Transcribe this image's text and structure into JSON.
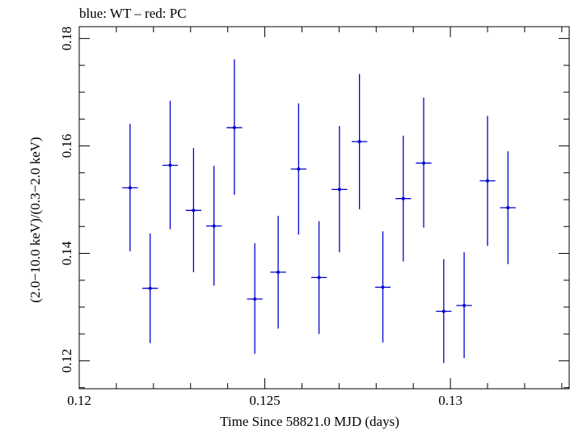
{
  "chart_data": {
    "type": "scatter",
    "title": "blue: WT – red: PC",
    "xlabel": "Time Since 58821.0 MJD (days)",
    "ylabel": "(2.0−10.0 keV)/(0.3−2.0 keV)",
    "xlim": [
      0.12,
      0.1332
    ],
    "ylim": [
      0.1148,
      0.1822
    ],
    "x_ticks": [
      0.12,
      0.125,
      0.13
    ],
    "x_tick_labels": [
      "0.12",
      "0.125",
      "0.13"
    ],
    "y_ticks": [
      0.12,
      0.14,
      0.16,
      0.18
    ],
    "y_tick_labels": [
      "0.12",
      "0.14",
      "0.16",
      "0.18"
    ],
    "grid": false,
    "colors": {
      "WT": "#0000cc"
    },
    "series": [
      {
        "name": "WT",
        "points": [
          {
            "x": 0.12137,
            "y": 0.1522,
            "xerr": 0.00021,
            "ylo": 0.1404,
            "yhi": 0.1641
          },
          {
            "x": 0.12191,
            "y": 0.1335,
            "xerr": 0.00021,
            "ylo": 0.1233,
            "yhi": 0.1437
          },
          {
            "x": 0.12245,
            "y": 0.1564,
            "xerr": 0.00021,
            "ylo": 0.1445,
            "yhi": 0.1684
          },
          {
            "x": 0.12308,
            "y": 0.148,
            "xerr": 0.00021,
            "ylo": 0.1365,
            "yhi": 0.1596
          },
          {
            "x": 0.12363,
            "y": 0.1451,
            "xerr": 0.00021,
            "ylo": 0.134,
            "yhi": 0.1563
          },
          {
            "x": 0.12418,
            "y": 0.1634,
            "xerr": 0.00021,
            "ylo": 0.1509,
            "yhi": 0.1761
          },
          {
            "x": 0.12473,
            "y": 0.1315,
            "xerr": 0.00021,
            "ylo": 0.1213,
            "yhi": 0.1419
          },
          {
            "x": 0.12536,
            "y": 0.1365,
            "xerr": 0.00021,
            "ylo": 0.126,
            "yhi": 0.147
          },
          {
            "x": 0.12591,
            "y": 0.1557,
            "xerr": 0.00021,
            "ylo": 0.1435,
            "yhi": 0.1679
          },
          {
            "x": 0.12646,
            "y": 0.1355,
            "xerr": 0.00021,
            "ylo": 0.125,
            "yhi": 0.146
          },
          {
            "x": 0.12701,
            "y": 0.1519,
            "xerr": 0.00021,
            "ylo": 0.1402,
            "yhi": 0.1637
          },
          {
            "x": 0.12755,
            "y": 0.1608,
            "xerr": 0.00021,
            "ylo": 0.1482,
            "yhi": 0.1734
          },
          {
            "x": 0.12818,
            "y": 0.1337,
            "xerr": 0.00021,
            "ylo": 0.1234,
            "yhi": 0.1441
          },
          {
            "x": 0.12873,
            "y": 0.1502,
            "xerr": 0.00021,
            "ylo": 0.1385,
            "yhi": 0.1619
          },
          {
            "x": 0.12928,
            "y": 0.1568,
            "xerr": 0.00021,
            "ylo": 0.1448,
            "yhi": 0.169
          },
          {
            "x": 0.12982,
            "y": 0.1292,
            "xerr": 0.00021,
            "ylo": 0.1196,
            "yhi": 0.1389
          },
          {
            "x": 0.13037,
            "y": 0.1303,
            "xerr": 0.00021,
            "ylo": 0.1205,
            "yhi": 0.1402
          },
          {
            "x": 0.131,
            "y": 0.1535,
            "xerr": 0.00021,
            "ylo": 0.1414,
            "yhi": 0.1656
          },
          {
            "x": 0.13155,
            "y": 0.1485,
            "xerr": 0.00021,
            "ylo": 0.138,
            "yhi": 0.159
          }
        ]
      }
    ]
  }
}
